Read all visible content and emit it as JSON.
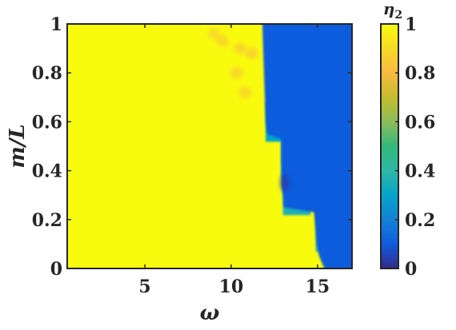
{
  "chart_data": {
    "type": "heatmap",
    "title": "",
    "xlabel": "ω",
    "ylabel": "m/L",
    "xlim": [
      0.5,
      17
    ],
    "ylim": [
      0,
      1
    ],
    "x_ticks": [
      {
        "value": 5,
        "label": "5"
      },
      {
        "value": 10,
        "label": "10"
      },
      {
        "value": 15,
        "label": "15"
      }
    ],
    "y_ticks": [
      {
        "value": 0,
        "label": "0"
      },
      {
        "value": 0.2,
        "label": "0.2"
      },
      {
        "value": 0.4,
        "label": "0.4"
      },
      {
        "value": 0.6,
        "label": "0.6"
      },
      {
        "value": 0.8,
        "label": "0.8"
      },
      {
        "value": 1,
        "label": "1"
      }
    ],
    "colorbar": {
      "label": "η2",
      "label_base": "η",
      "label_sub": "2",
      "range": [
        0,
        1
      ],
      "colormap": "parula",
      "ticks": [
        {
          "value": 0,
          "label": "0"
        },
        {
          "value": 0.2,
          "label": "0.2"
        },
        {
          "value": 0.4,
          "label": "0.4"
        },
        {
          "value": 0.6,
          "label": "0.6"
        },
        {
          "value": 0.8,
          "label": "0.8"
        },
        {
          "value": 1,
          "label": "1"
        }
      ]
    },
    "boundary": [
      {
        "m_over_L": 1.0,
        "omega": 11.8
      },
      {
        "m_over_L": 0.9,
        "omega": 11.85
      },
      {
        "m_over_L": 0.8,
        "omega": 11.9
      },
      {
        "m_over_L": 0.7,
        "omega": 11.95
      },
      {
        "m_over_L": 0.6,
        "omega": 12.0
      },
      {
        "m_over_L": 0.55,
        "omega": 12.1
      },
      {
        "m_over_L": 0.53,
        "omega": 12.9
      },
      {
        "m_over_L": 0.45,
        "omega": 12.9
      },
      {
        "m_over_L": 0.35,
        "omega": 12.95
      },
      {
        "m_over_L": 0.3,
        "omega": 13.0
      },
      {
        "m_over_L": 0.25,
        "omega": 13.05
      },
      {
        "m_over_L": 0.23,
        "omega": 14.8
      },
      {
        "m_over_L": 0.15,
        "omega": 14.9
      },
      {
        "m_over_L": 0.1,
        "omega": 14.95
      },
      {
        "m_over_L": 0.05,
        "omega": 15.1
      },
      {
        "m_over_L": 0.0,
        "omega": 15.5
      }
    ],
    "low_region_value": 0.1,
    "high_region_value": 1.0,
    "transition_band": [
      {
        "m_over_L": 0.6,
        "omega_start": 12.0,
        "omega_end": 13.5,
        "value": 0.3
      },
      {
        "m_over_L": 0.45,
        "omega_start": 12.9,
        "omega_end": 14.2,
        "value": 0.3
      },
      {
        "m_over_L": 0.3,
        "omega_start": 13.0,
        "omega_end": 14.6,
        "value": 0.35
      },
      {
        "m_over_L": 0.15,
        "omega_start": 14.9,
        "omega_end": 15.3,
        "value": 0.4
      }
    ],
    "dark_spot": {
      "omega": 13.1,
      "m_over_L": 0.35,
      "value": 0.05
    },
    "orange_patches": [
      {
        "omega": 9.5,
        "m_over_L": 0.93,
        "value": 0.87
      },
      {
        "omega": 10.5,
        "m_over_L": 0.9,
        "value": 0.86
      },
      {
        "omega": 11.2,
        "m_over_L": 0.88,
        "value": 0.85
      },
      {
        "omega": 10.3,
        "m_over_L": 0.8,
        "value": 0.86
      },
      {
        "omega": 10.8,
        "m_over_L": 0.72,
        "value": 0.87
      },
      {
        "omega": 9.0,
        "m_over_L": 0.96,
        "value": 0.88
      }
    ]
  }
}
